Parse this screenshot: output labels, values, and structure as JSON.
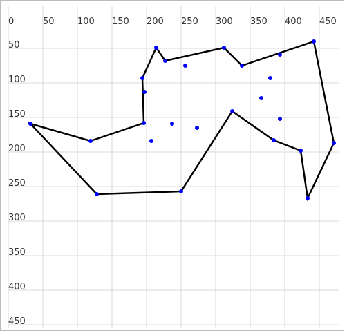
{
  "chart_data": {
    "type": "scatter",
    "xlim": [
      0,
      478
    ],
    "ylim": [
      0,
      455
    ],
    "xticks": [
      0,
      50,
      100,
      150,
      200,
      250,
      300,
      350,
      400,
      450
    ],
    "yticks": [
      50,
      100,
      150,
      200,
      250,
      300,
      350,
      400,
      450
    ],
    "grid": true,
    "y_inverted": true,
    "series": [
      {
        "color": "#000000",
        "marker_color": "#0000ff",
        "line": true,
        "closed": true,
        "x": [
          32,
          119,
          196,
          194,
          214,
          227,
          312,
          338,
          442,
          471,
          433,
          423,
          384,
          324,
          250,
          128
        ],
        "y": [
          159,
          184,
          158,
          93,
          49,
          68,
          49,
          75,
          40,
          187,
          267,
          198,
          183,
          141,
          257,
          261
        ]
      },
      {
        "color": "#0000ff",
        "line": false,
        "x": [
          393,
          256,
          379,
          197,
          366,
          393,
          237,
          273,
          207
        ],
        "y": [
          59,
          75,
          93,
          113,
          122,
          152,
          159,
          165,
          184
        ]
      }
    ]
  }
}
